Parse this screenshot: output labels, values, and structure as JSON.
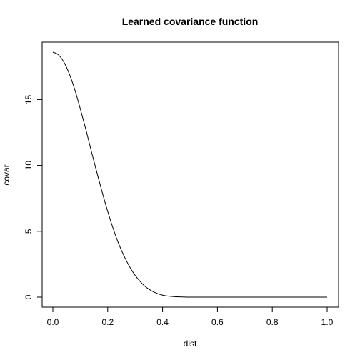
{
  "chart_data": {
    "type": "line",
    "title": "Learned covariance function",
    "xlabel": "dist",
    "ylabel": "covar",
    "xlim": [
      0.0,
      1.0
    ],
    "ylim": [
      0.0,
      18.6
    ],
    "x_ticks": [
      {
        "value": 0.0,
        "label": "0.0"
      },
      {
        "value": 0.2,
        "label": "0.2"
      },
      {
        "value": 0.4,
        "label": "0.4"
      },
      {
        "value": 0.6,
        "label": "0.6"
      },
      {
        "value": 0.8,
        "label": "0.8"
      },
      {
        "value": 1.0,
        "label": "1.0"
      }
    ],
    "y_ticks": [
      {
        "value": 0,
        "label": "0"
      },
      {
        "value": 5,
        "label": "5"
      },
      {
        "value": 10,
        "label": "10"
      },
      {
        "value": 15,
        "label": "15"
      }
    ],
    "grid": false,
    "legend": "none",
    "line_color": "#000000",
    "series": [
      {
        "x": [
          0.0,
          0.02,
          0.04,
          0.06,
          0.08,
          0.1,
          0.12,
          0.14,
          0.16,
          0.18,
          0.2,
          0.22,
          0.24,
          0.26,
          0.28,
          0.3,
          0.32,
          0.34,
          0.36,
          0.38,
          0.4,
          0.42,
          0.44,
          0.46,
          0.48,
          0.5,
          0.6,
          0.7,
          0.8,
          0.9,
          1.0
        ],
        "y": [
          18.6,
          18.4,
          17.85,
          16.95,
          15.75,
          14.3,
          12.75,
          11.1,
          9.5,
          7.95,
          6.5,
          5.2,
          4.05,
          3.1,
          2.3,
          1.65,
          1.15,
          0.75,
          0.48,
          0.28,
          0.15,
          0.08,
          0.04,
          0.02,
          0.01,
          0.0,
          0.0,
          0.0,
          0.0,
          0.0,
          0.0
        ]
      }
    ]
  }
}
